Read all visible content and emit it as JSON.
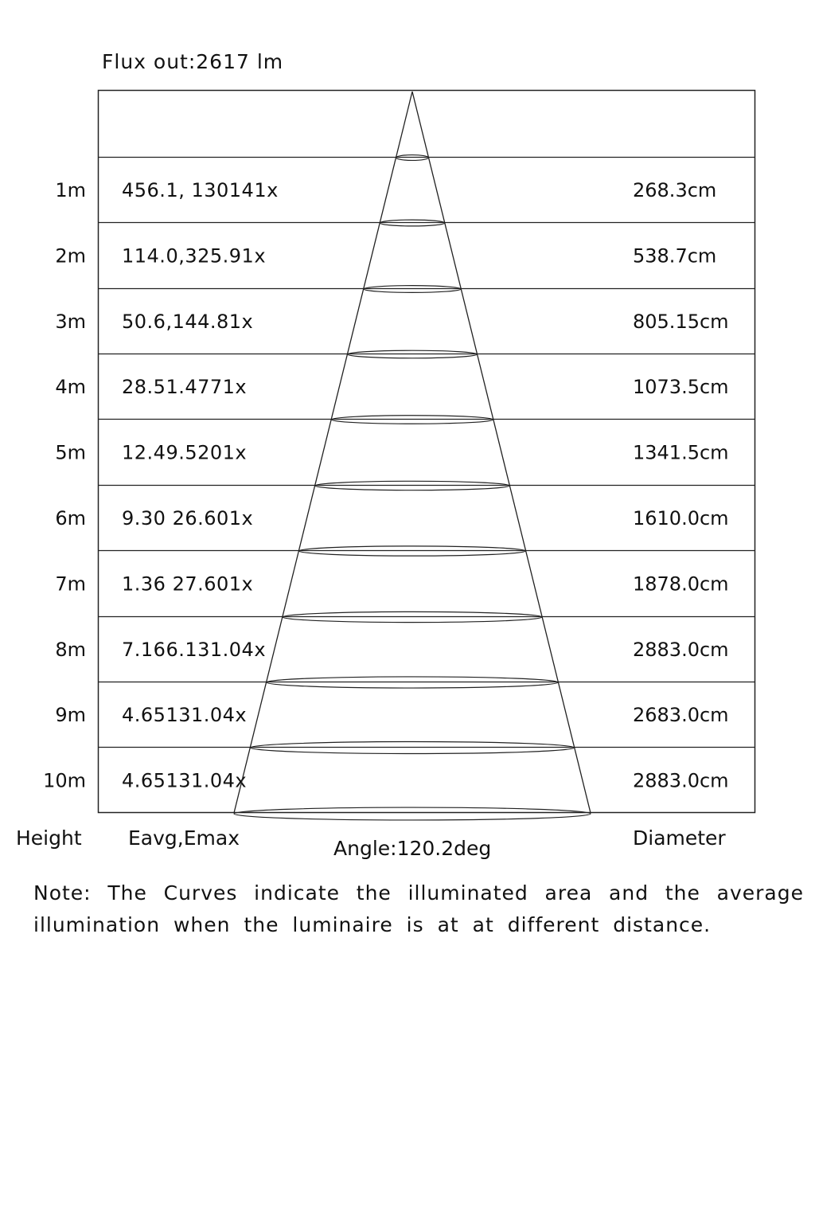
{
  "flux_out": "Flux out:2617 lm",
  "rows": [
    {
      "height": "1m",
      "eavg_emax": "456.1, 130141x",
      "diameter": "268.3cm"
    },
    {
      "height": "2m",
      "eavg_emax": "114.0,325.91x",
      "diameter": "538.7cm"
    },
    {
      "height": "3m",
      "eavg_emax": "50.6,144.81x",
      "diameter": "805.15cm"
    },
    {
      "height": "4m",
      "eavg_emax": "28.51.4771x",
      "diameter": "1073.5cm"
    },
    {
      "height": "5m",
      "eavg_emax": "12.49.5201x",
      "diameter": "1341.5cm"
    },
    {
      "height": "6m",
      "eavg_emax": "9.30 26.601x",
      "diameter": "1610.0cm"
    },
    {
      "height": "7m",
      "eavg_emax": "1.36 27.601x",
      "diameter": "1878.0cm"
    },
    {
      "height": "8m",
      "eavg_emax": "7.166.131.04x",
      "diameter": "2883.0cm"
    },
    {
      "height": "9m",
      "eavg_emax": "4.65131.04x",
      "diameter": "2683.0cm"
    },
    {
      "height": "10m",
      "eavg_emax": "4.65131.04x",
      "diameter": "2883.0cm"
    }
  ],
  "labels": {
    "height": "Height",
    "eavg_emax": "Eavg,Emax",
    "angle": "Angle:120.2deg",
    "diameter": "Diameter"
  },
  "note": "Note: The Curves indicate the illuminated area and the average illumination when the luminaire is at at different distance.",
  "colors": {
    "line": "#222222",
    "background": "#ffffff"
  }
}
